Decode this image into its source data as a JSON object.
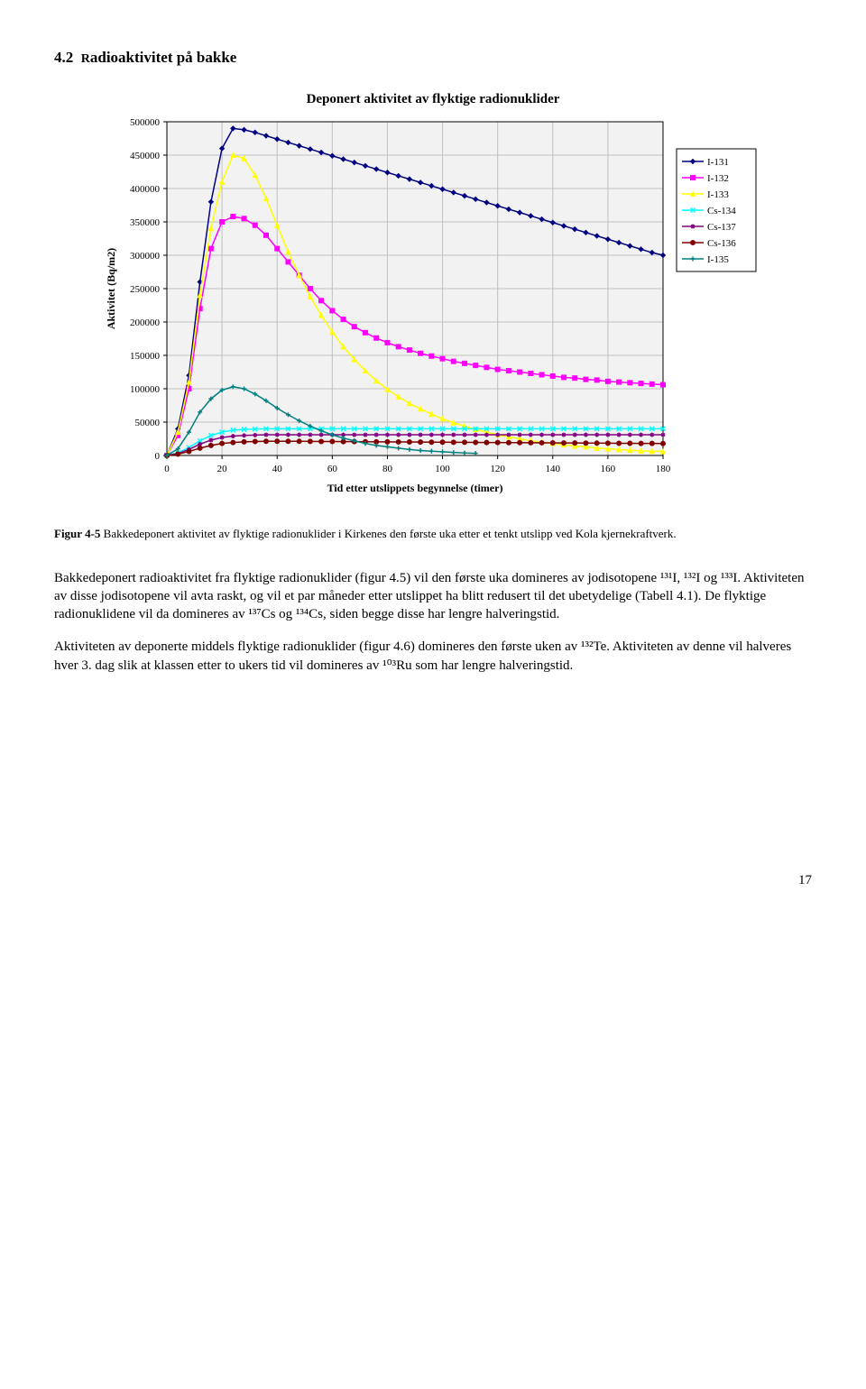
{
  "section": {
    "number": "4.2",
    "initial": "R",
    "rest": "adioaktivitet på bakke"
  },
  "chart": {
    "type": "line",
    "title": "Deponert aktivitet av flyktige radionuklider",
    "xlabel": "Tid etter utslippets begynnelse (timer)",
    "ylabel": "Aktivitet (Bq/m2)",
    "xlim": [
      0,
      180
    ],
    "xtick_step": 20,
    "ylim": [
      0,
      500000
    ],
    "ytick_step": 50000,
    "ytick_labels": [
      "0",
      "50000",
      "100000",
      "150000",
      "200000",
      "250000",
      "300000",
      "350000",
      "400000",
      "450000",
      "500000"
    ],
    "xtick_labels": [
      "0",
      "20",
      "40",
      "60",
      "80",
      "100",
      "120",
      "140",
      "160",
      "180"
    ],
    "background_color": "#ffffff",
    "gridline_color": "#c0c0c0",
    "plot_bg": "#f2f2f2",
    "axis_color": "#000000",
    "label_fontsize": 12,
    "tick_fontsize": 11,
    "title_fontsize": 15,
    "marker_size": 5,
    "line_width": 1.5,
    "legend": {
      "items": [
        "I-131",
        "I-132",
        "I-133",
        "Cs-134",
        "Cs-137",
        "Cs-136",
        "I-135"
      ],
      "position": "right",
      "fontsize": 11,
      "border_color": "#000000",
      "bg": "#ffffff"
    },
    "series": {
      "I-131": {
        "color": "#000080",
        "marker": "diamond",
        "x": [
          0,
          4,
          8,
          12,
          16,
          20,
          24,
          28,
          32,
          36,
          40,
          44,
          48,
          52,
          56,
          60,
          64,
          68,
          72,
          76,
          80,
          84,
          88,
          92,
          96,
          100,
          104,
          108,
          112,
          116,
          120,
          124,
          128,
          132,
          136,
          140,
          144,
          148,
          152,
          156,
          160,
          164,
          168,
          172,
          176,
          180
        ],
        "y": [
          0,
          40000,
          120000,
          260000,
          380000,
          460000,
          490000,
          488000,
          484000,
          479000,
          474000,
          469000,
          464000,
          459000,
          454000,
          449000,
          444000,
          439000,
          434000,
          429000,
          424000,
          419000,
          414000,
          409000,
          404000,
          399000,
          394000,
          389000,
          384000,
          379000,
          374000,
          369000,
          364000,
          359000,
          354000,
          349000,
          344000,
          339000,
          334000,
          329000,
          324000,
          319000,
          314000,
          309000,
          304000,
          300000
        ]
      },
      "I-132": {
        "color": "#ff00ff",
        "marker": "square",
        "x": [
          0,
          4,
          8,
          12,
          16,
          20,
          24,
          28,
          32,
          36,
          40,
          44,
          48,
          52,
          56,
          60,
          64,
          68,
          72,
          76,
          80,
          84,
          88,
          92,
          96,
          100,
          104,
          108,
          112,
          116,
          120,
          124,
          128,
          132,
          136,
          140,
          144,
          148,
          152,
          156,
          160,
          164,
          168,
          172,
          176,
          180
        ],
        "y": [
          0,
          30000,
          100000,
          220000,
          310000,
          350000,
          358000,
          355000,
          345000,
          330000,
          310000,
          290000,
          270000,
          250000,
          232000,
          217000,
          204000,
          193000,
          184000,
          176000,
          169000,
          163000,
          158000,
          153000,
          149000,
          145000,
          141000,
          138000,
          135000,
          132000,
          129000,
          127000,
          125000,
          123000,
          121000,
          119000,
          117000,
          116000,
          114000,
          113000,
          111000,
          110000,
          109000,
          108000,
          107000,
          106000
        ]
      },
      "I-133": {
        "color": "#ffff00",
        "marker": "triangle",
        "x": [
          0,
          4,
          8,
          12,
          16,
          20,
          24,
          28,
          32,
          36,
          40,
          44,
          48,
          52,
          56,
          60,
          64,
          68,
          72,
          76,
          80,
          84,
          88,
          92,
          96,
          100,
          104,
          108,
          112,
          116,
          120,
          124,
          128,
          132,
          136,
          140,
          144,
          148,
          152,
          156,
          160,
          164,
          168,
          172,
          176,
          180
        ],
        "y": [
          0,
          35000,
          110000,
          240000,
          340000,
          410000,
          450000,
          445000,
          420000,
          385000,
          345000,
          305000,
          270000,
          238000,
          210000,
          185000,
          163000,
          144000,
          127000,
          112000,
          99000,
          88000,
          78000,
          70000,
          62000,
          55000,
          49000,
          44000,
          39000,
          35000,
          31000,
          28000,
          25000,
          22000,
          20000,
          18000,
          16000,
          14000,
          13000,
          11000,
          10000,
          9000,
          8000,
          7000,
          6500,
          6000
        ]
      },
      "Cs-134": {
        "color": "#00ffff",
        "marker": "x",
        "x": [
          0,
          4,
          8,
          12,
          16,
          20,
          24,
          28,
          32,
          36,
          40,
          44,
          48,
          52,
          56,
          60,
          64,
          68,
          72,
          76,
          80,
          84,
          88,
          92,
          96,
          100,
          104,
          108,
          112,
          116,
          120,
          124,
          128,
          132,
          136,
          140,
          144,
          148,
          152,
          156,
          160,
          164,
          168,
          172,
          176,
          180
        ],
        "y": [
          0,
          4000,
          12000,
          22000,
          30000,
          35000,
          38000,
          39000,
          39500,
          40000,
          40000,
          40000,
          40000,
          40000,
          40000,
          40000,
          40000,
          40000,
          40000,
          40000,
          40000,
          40000,
          40000,
          40000,
          40000,
          40000,
          40000,
          40000,
          40000,
          40000,
          40000,
          40000,
          40000,
          40000,
          40000,
          40000,
          40000,
          40000,
          40000,
          40000,
          40000,
          40000,
          40000,
          40000,
          40000,
          40000
        ]
      },
      "Cs-137": {
        "color": "#800080",
        "marker": "asterisk",
        "x": [
          0,
          4,
          8,
          12,
          16,
          20,
          24,
          28,
          32,
          36,
          40,
          44,
          48,
          52,
          56,
          60,
          64,
          68,
          72,
          76,
          80,
          84,
          88,
          92,
          96,
          100,
          104,
          108,
          112,
          116,
          120,
          124,
          128,
          132,
          136,
          140,
          144,
          148,
          152,
          156,
          160,
          164,
          168,
          172,
          176,
          180
        ],
        "y": [
          0,
          3000,
          9000,
          17000,
          23000,
          27000,
          29000,
          30000,
          30500,
          31000,
          31000,
          31000,
          31000,
          31000,
          31000,
          31000,
          31000,
          31000,
          31000,
          31000,
          31000,
          31000,
          31000,
          31000,
          31000,
          31000,
          31000,
          31000,
          31000,
          31000,
          31000,
          31000,
          31000,
          31000,
          31000,
          31000,
          31000,
          31000,
          31000,
          31000,
          31000,
          31000,
          31000,
          31000,
          31000,
          31000
        ]
      },
      "Cs-136": {
        "color": "#800000",
        "marker": "circle",
        "x": [
          0,
          4,
          8,
          12,
          16,
          20,
          24,
          28,
          32,
          36,
          40,
          44,
          48,
          52,
          56,
          60,
          64,
          68,
          72,
          76,
          80,
          84,
          88,
          92,
          96,
          100,
          104,
          108,
          112,
          116,
          120,
          124,
          128,
          132,
          136,
          140,
          144,
          148,
          152,
          156,
          160,
          164,
          168,
          172,
          176,
          180
        ],
        "y": [
          0,
          2000,
          6000,
          11000,
          15000,
          18000,
          19500,
          20500,
          21000,
          21200,
          21300,
          21300,
          21200,
          21100,
          21000,
          20900,
          20800,
          20700,
          20600,
          20500,
          20400,
          20300,
          20200,
          20100,
          20000,
          19900,
          19800,
          19700,
          19600,
          19500,
          19400,
          19300,
          19200,
          19100,
          19000,
          18900,
          18800,
          18700,
          18600,
          18500,
          18400,
          18300,
          18200,
          18100,
          18000,
          17900
        ]
      },
      "I-135": {
        "color": "#008080",
        "marker": "plus",
        "x": [
          0,
          4,
          8,
          12,
          16,
          20,
          24,
          28,
          32,
          36,
          40,
          44,
          48,
          52,
          56,
          60,
          64,
          68,
          72,
          76,
          80,
          84,
          88,
          92,
          96,
          100,
          104,
          108,
          112
        ],
        "y": [
          0,
          10000,
          35000,
          65000,
          85000,
          98000,
          103000,
          100000,
          92000,
          82000,
          71000,
          61000,
          52000,
          44000,
          37000,
          31000,
          26000,
          22000,
          18000,
          15000,
          13000,
          11000,
          9000,
          7500,
          6500,
          5500,
          4500,
          3800,
          3200
        ]
      }
    }
  },
  "caption": {
    "label": "Figur 4-5",
    "text": " Bakkedeponert aktivitet av flyktige radionuklider i Kirkenes den første uka etter et tenkt utslipp ved Kola kjernekraftverk."
  },
  "para1": "Bakkedeponert radioaktivitet fra flyktige radionuklider (figur 4.5) vil den første uka domineres av jodisotopene ¹³¹I, ¹³²I og ¹³³I. Aktiviteten av disse jodisotopene vil avta raskt, og vil et par måneder etter utslippet ha blitt redusert til det ubetydelige (Tabell 4.1). De flyktige radionuklidene vil da domineres av ¹³⁷Cs og ¹³⁴Cs, siden begge disse har lengre halveringstid.",
  "para2": "Aktiviteten av deponerte middels flyktige radionuklider (figur 4.6) domineres den første uken av ¹³²Te. Aktiviteten av denne vil halveres hver 3. dag slik at klassen etter to ukers tid vil domineres av ¹⁰³Ru som har lengre halveringstid.",
  "page_number": "17"
}
